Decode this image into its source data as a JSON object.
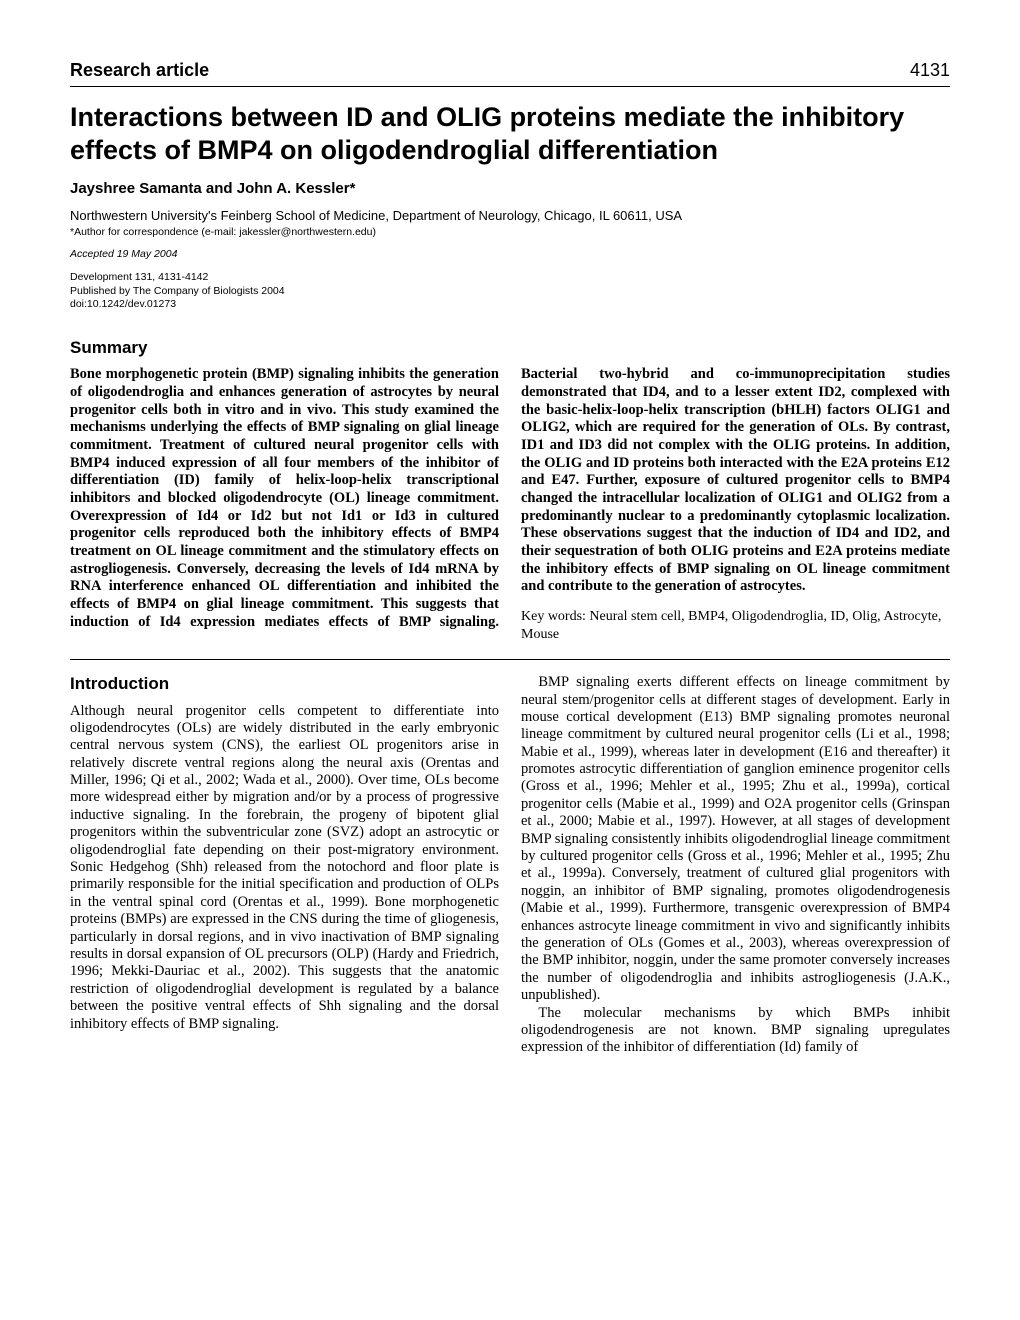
{
  "header": {
    "sectionLabel": "Research article",
    "pageNumber": "4131"
  },
  "title": "Interactions between ID and OLIG proteins mediate the inhibitory effects of BMP4 on oligodendroglial differentiation",
  "authors": "Jayshree Samanta and John A. Kessler*",
  "affiliation": "Northwestern University's Feinberg School of Medicine, Department of Neurology, Chicago, IL 60611, USA",
  "correspondence": "*Author for correspondence (e-mail: jakessler@northwestern.edu)",
  "accepted": "Accepted 19 May 2004",
  "pubLine1": "Development 131, 4131-4142",
  "pubLine2": "Published by The Company of Biologists 2004",
  "pubLine3": "doi:10.1242/dev.01273",
  "summaryHeading": "Summary",
  "summaryText": "Bone morphogenetic protein (BMP) signaling inhibits the generation of oligodendroglia and enhances generation of astrocytes by neural progenitor cells both in vitro and in vivo. This study examined the mechanisms underlying the effects of BMP signaling on glial lineage commitment. Treatment of cultured neural progenitor cells with BMP4 induced expression of all four members of the inhibitor of differentiation (ID) family of helix-loop-helix transcriptional inhibitors and blocked oligodendrocyte (OL) lineage commitment. Overexpression of Id4 or Id2 but not Id1 or Id3 in cultured progenitor cells reproduced both the inhibitory effects of BMP4 treatment on OL lineage commitment and the stimulatory effects on astrogliogenesis. Conversely, decreasing the levels of Id4 mRNA by RNA interference enhanced OL differentiation and inhibited the effects of BMP4 on glial lineage commitment. This suggests that induction of Id4 expression mediates effects of BMP signaling. Bacterial two-hybrid and co-immunoprecipitation studies demonstrated that ID4, and to a lesser extent ID2, complexed with the basic-helix-loop-helix transcription (bHLH) factors OLIG1 and OLIG2, which are required for the generation of OLs. By contrast, ID1 and ID3 did not complex with the OLIG proteins. In addition, the OLIG and ID proteins both interacted with the E2A proteins E12 and E47. Further, exposure of cultured progenitor cells to BMP4 changed the intracellular localization of OLIG1 and OLIG2 from a predominantly nuclear to a predominantly cytoplasmic localization. These observations suggest that the induction of ID4 and ID2, and their sequestration of both OLIG proteins and E2A proteins mediate the inhibitory effects of BMP signaling on OL lineage commitment and contribute to the generation of astrocytes.",
  "keywords": "Key words: Neural stem cell, BMP4, Oligodendroglia, ID, Olig, Astrocyte, Mouse",
  "introHeading": "Introduction",
  "introP1": "Although neural progenitor cells competent to differentiate into oligodendrocytes (OLs) are widely distributed in the early embryonic central nervous system (CNS), the earliest OL progenitors arise in relatively discrete ventral regions along the neural axis (Orentas and Miller, 1996; Qi et al., 2002; Wada et al., 2000). Over time, OLs become more widespread either by migration and/or by a process of progressive inductive signaling. In the forebrain, the progeny of bipotent glial progenitors within the subventricular zone (SVZ) adopt an astrocytic or oligodendroglial fate depending on their post-migratory environment. Sonic Hedgehog (Shh) released from the notochord and floor plate is primarily responsible for the initial specification and production of OLPs in the ventral spinal cord (Orentas et al., 1999). Bone morphogenetic proteins (BMPs) are expressed in the CNS during the time of gliogenesis, particularly in dorsal regions, and in vivo inactivation of BMP signaling results in dorsal expansion of OL precursors (OLP) (Hardy and Friedrich, 1996; Mekki-Dauriac et al., 2002). This suggests that the anatomic restriction of oligodendroglial development is regulated by a balance between the positive ventral effects of Shh signaling and the dorsal inhibitory effects of BMP signaling.",
  "introP2": "BMP signaling exerts different effects on lineage commitment by neural stem/progenitor cells at different stages of development. Early in mouse cortical development (E13) BMP signaling promotes neuronal lineage commitment by cultured neural progenitor cells (Li et al., 1998; Mabie et al., 1999), whereas later in development (E16 and thereafter) it promotes astrocytic differentiation of ganglion eminence progenitor cells (Gross et al., 1996; Mehler et al., 1995; Zhu et al., 1999a), cortical progenitor cells (Mabie et al., 1999) and O2A progenitor cells (Grinspan et al., 2000; Mabie et al., 1997). However, at all stages of development BMP signaling consistently inhibits oligodendroglial lineage commitment by cultured progenitor cells (Gross et al., 1996; Mehler et al., 1995; Zhu et al., 1999a). Conversely, treatment of cultured glial progenitors with noggin, an inhibitor of BMP signaling, promotes oligodendrogenesis (Mabie et al., 1999). Furthermore, transgenic overexpression of BMP4 enhances astrocyte lineage commitment in vivo and significantly inhibits the generation of OLs (Gomes et al., 2003), whereas overexpression of the BMP inhibitor, noggin, under the same promoter conversely increases the number of oligodendroglia and inhibits astrogliogenesis (J.A.K., unpublished).",
  "introP3": "The molecular mechanisms by which BMPs inhibit oligodendrogenesis are not known. BMP signaling upregulates expression of the inhibitor of differentiation (Id) family of",
  "styling": {
    "pageWidthPx": 1020,
    "pageHeightPx": 1320,
    "background": "#ffffff",
    "textColor": "#000000",
    "sansFont": "Arial, Helvetica, sans-serif",
    "serifFont": "Times New Roman, Times, serif",
    "titleFontSizePt": 20,
    "headingFontSizePt": 13,
    "bodyFontSizePt": 11,
    "columnGapPx": 22,
    "ruleColor": "#000000"
  }
}
